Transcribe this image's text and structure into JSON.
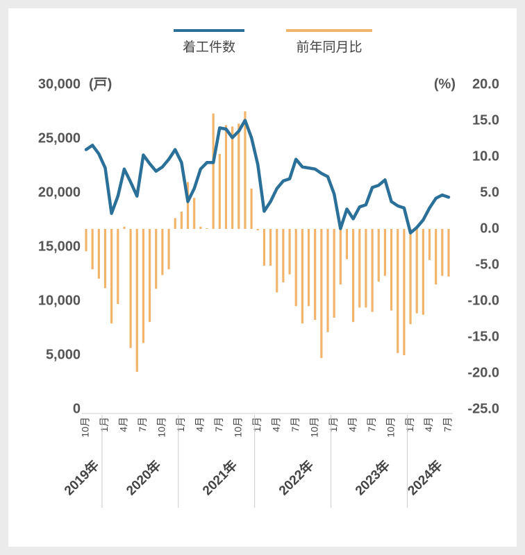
{
  "chart_data": {
    "type": "bar-line",
    "categories": [
      "10月",
      null,
      null,
      "1月",
      null,
      null,
      "4月",
      null,
      null,
      "7月",
      null,
      null,
      "10月",
      null,
      null,
      "1月",
      null,
      null,
      "4月",
      null,
      null,
      "7月",
      null,
      null,
      "10月",
      null,
      null,
      "1月",
      null,
      null,
      "4月",
      null,
      null,
      "7月",
      null,
      null,
      "10月",
      null,
      null,
      "1月",
      null,
      null,
      "4月",
      null,
      null,
      "7月",
      null,
      null,
      "10月",
      null,
      null,
      "1月",
      null,
      null,
      "4月",
      null,
      null,
      "7月"
    ],
    "years": [
      "2019年",
      "2020年",
      "2021年",
      "2022年",
      "2023年",
      "2024年"
    ],
    "series": [
      {
        "name": "着工件数",
        "type": "line",
        "axis": "y",
        "color": "#2a7099",
        "values": [
          24000,
          24400,
          23600,
          22300,
          18100,
          19700,
          22200,
          21000,
          19700,
          23500,
          22700,
          22000,
          22400,
          23100,
          24000,
          22800,
          19200,
          20400,
          22200,
          22800,
          22800,
          26000,
          25900,
          25100,
          25700,
          26700,
          25100,
          22600,
          18300,
          19200,
          20400,
          21100,
          21300,
          23100,
          22400,
          22300,
          22200,
          21800,
          21500,
          19900,
          16700,
          18500,
          17600,
          18700,
          18900,
          20500,
          20700,
          21200,
          19200,
          18800,
          18600,
          16300,
          16800,
          17500,
          18600,
          19500,
          19800,
          19600
        ]
      },
      {
        "name": "前年同月比",
        "type": "bar",
        "axis": "y2",
        "color": "#f2b46a",
        "values": [
          -3.1,
          -5.6,
          -6.9,
          -8.2,
          -13.1,
          -10.4,
          0.3,
          -16.5,
          -19.8,
          -15.8,
          -12.9,
          -8.3,
          -6.4,
          -5.6,
          1.5,
          2.4,
          6.5,
          4.3,
          0.3,
          0.1,
          16.0,
          10.4,
          14.4,
          14.2,
          14.6,
          16.3,
          5.6,
          -0.2,
          -5.1,
          -5.1,
          -8.8,
          -7.4,
          -6.3,
          -10.7,
          -13.1,
          -10.7,
          -12.6,
          -17.9,
          -14.3,
          -12.3,
          -7.7,
          -4.2,
          -12.9,
          -10.9,
          -10.9,
          -11.5,
          -7.3,
          -6.5,
          -11.3,
          -17.2,
          -17.5,
          -13.2,
          -11.7,
          -11.9,
          -4.3,
          -7.7,
          -6.5,
          -6.6
        ]
      }
    ],
    "y_unit": "(戸)",
    "y2_unit": "(%)",
    "y_unit_color": "#2a7099",
    "y2_unit_color": "#e0782a",
    "negative_tick_color": "#d9302a",
    "ylim": [
      0,
      30000
    ],
    "yticks": [
      0,
      {
        "value": 5000,
        "label": "5,000"
      },
      {
        "value": 10000,
        "label": "10,000"
      },
      {
        "value": 15000,
        "label": "15,000"
      },
      {
        "value": 20000,
        "label": "20,000"
      },
      {
        "value": 25000,
        "label": "25,000"
      },
      {
        "value": 30000,
        "label": "30,000"
      }
    ],
    "y2lim": [
      -25,
      20
    ],
    "y2ticks": [
      {
        "value": 20,
        "label": "20.0"
      },
      {
        "value": 15,
        "label": "15.0"
      },
      {
        "value": 10,
        "label": "10.0"
      },
      {
        "value": 5,
        "label": "5.0"
      },
      {
        "value": 0,
        "label": "0.0"
      },
      {
        "value": -5,
        "label": "-5.0"
      },
      {
        "value": -10,
        "label": "-10.0"
      },
      {
        "value": -15,
        "label": "-15.0"
      },
      {
        "value": -20,
        "label": "-20.0"
      },
      {
        "value": -25,
        "label": "-25.0"
      }
    ],
    "legend": "top",
    "grid": false
  }
}
